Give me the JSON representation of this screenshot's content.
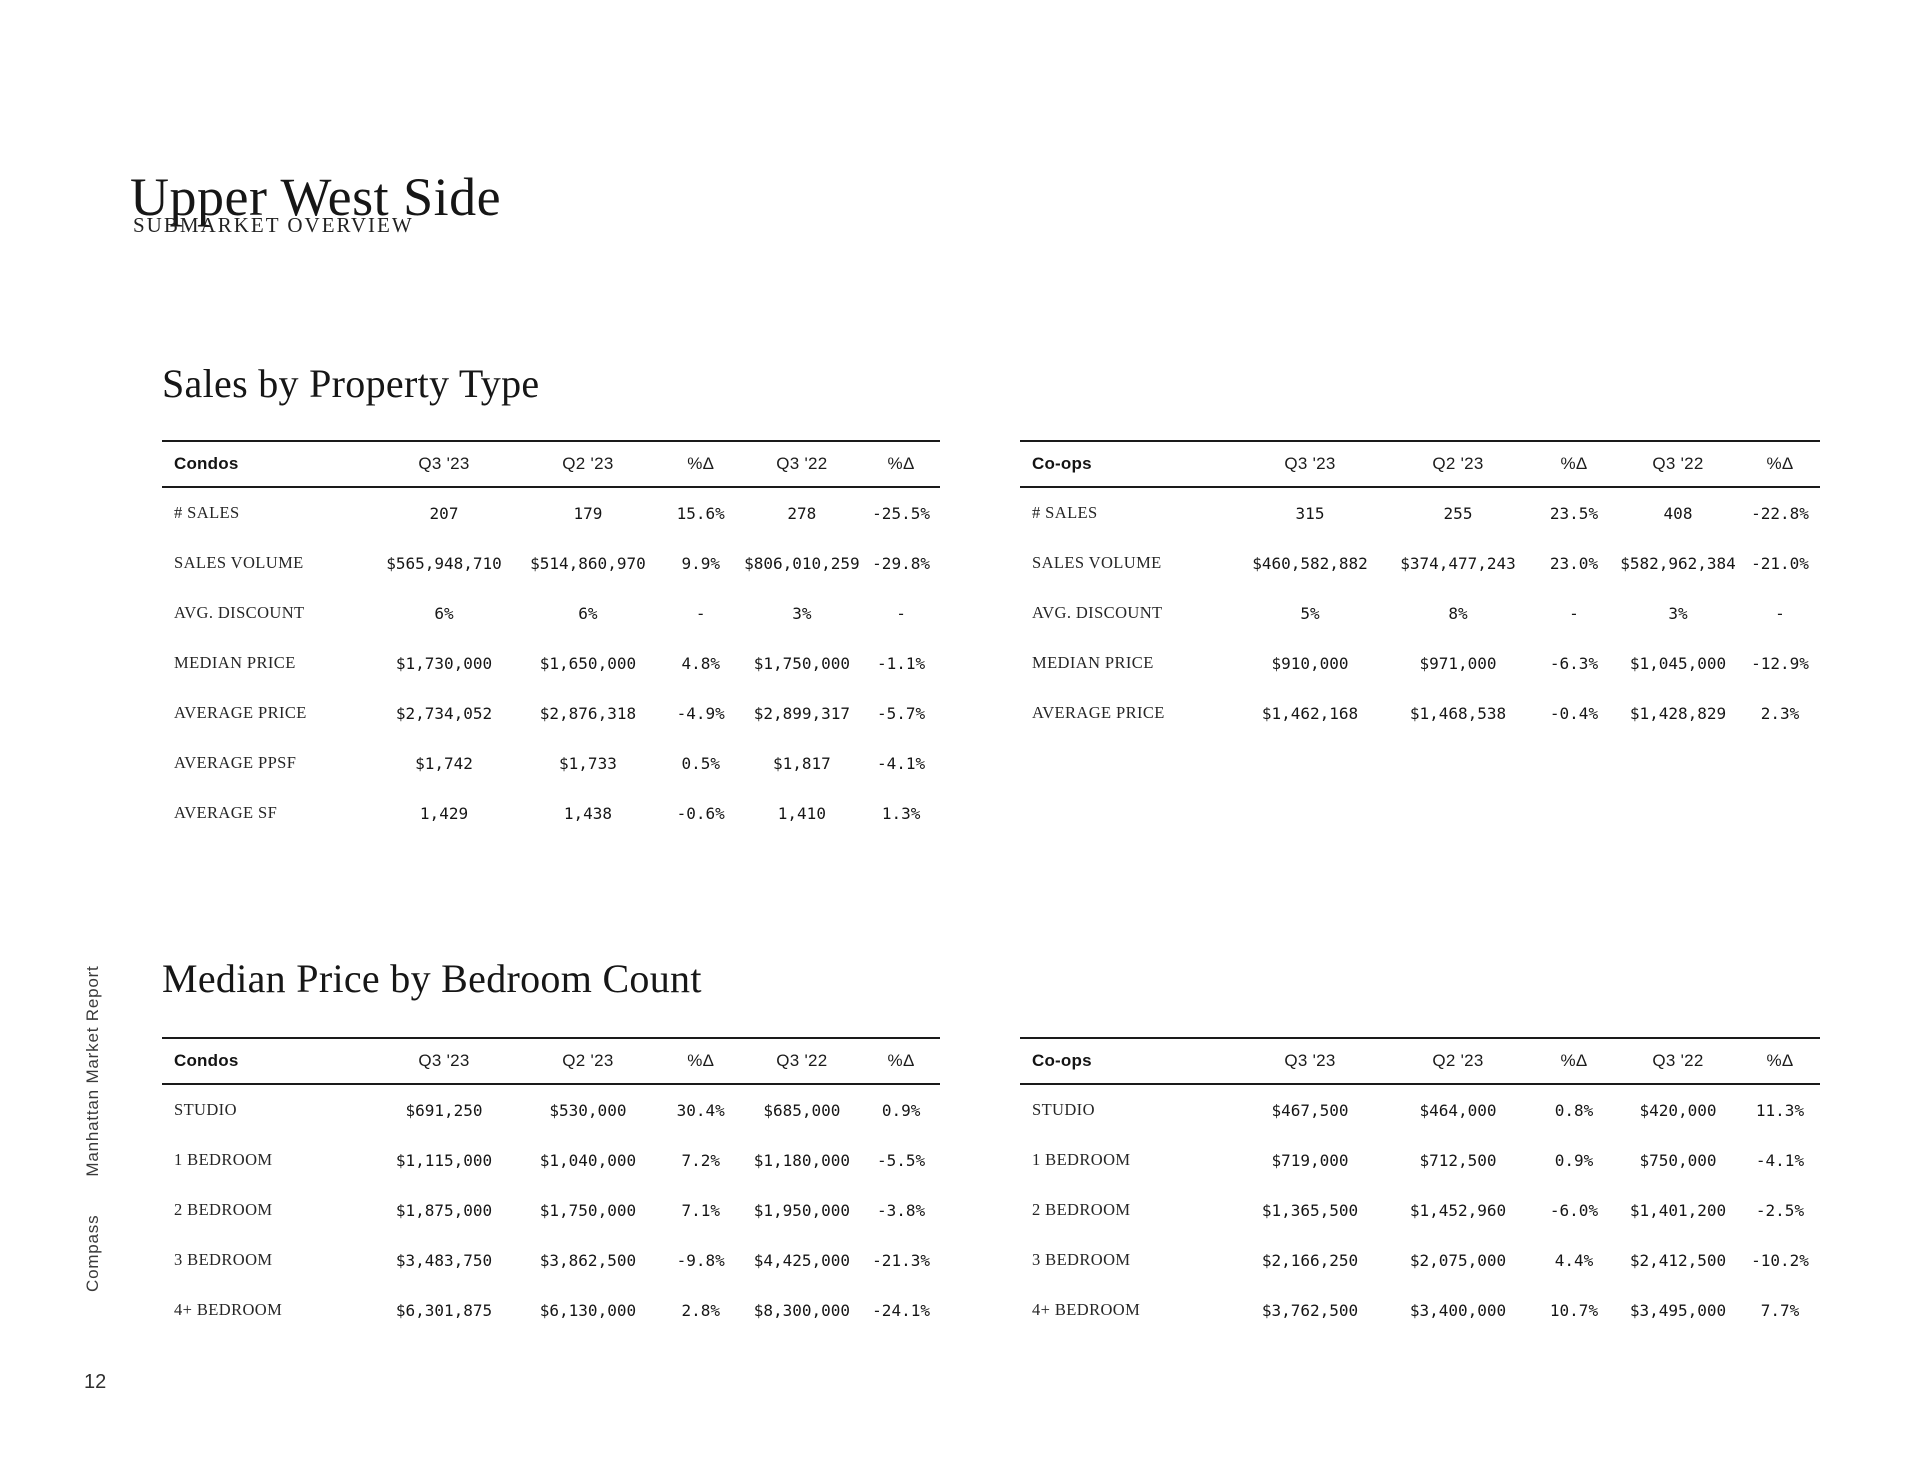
{
  "page": {
    "title": "Upper West Side",
    "subtitle": "SUBMARKET OVERVIEW",
    "page_number": "12",
    "vertical_label": {
      "brand": "Compass",
      "report": "Manhattan Market Report"
    }
  },
  "colors": {
    "text": "#1a1a1a",
    "rule": "#1a1a1a",
    "sidebar_text": "#3a3a3a",
    "background": "#ffffff"
  },
  "sections": [
    {
      "heading": "Sales by Property Type",
      "tables": [
        {
          "name": "Condos",
          "columns": [
            "Q3 '23",
            "Q2 '23",
            "%Δ",
            "Q3 '22",
            "%Δ"
          ],
          "rows": [
            {
              "label": "# SALES",
              "values": [
                "207",
                "179",
                "15.6%",
                "278",
                "-25.5%"
              ]
            },
            {
              "label": "SALES VOLUME",
              "values": [
                "$565,948,710",
                "$514,860,970",
                "9.9%",
                "$806,010,259",
                "-29.8%"
              ]
            },
            {
              "label": "AVG. DISCOUNT",
              "values": [
                "6%",
                "6%",
                "-",
                "3%",
                "-"
              ]
            },
            {
              "label": "MEDIAN PRICE",
              "values": [
                "$1,730,000",
                "$1,650,000",
                "4.8%",
                "$1,750,000",
                "-1.1%"
              ]
            },
            {
              "label": "AVERAGE PRICE",
              "values": [
                "$2,734,052",
                "$2,876,318",
                "-4.9%",
                "$2,899,317",
                "-5.7%"
              ]
            },
            {
              "label": "AVERAGE PPSF",
              "values": [
                "$1,742",
                "$1,733",
                "0.5%",
                "$1,817",
                "-4.1%"
              ]
            },
            {
              "label": "AVERAGE SF",
              "values": [
                "1,429",
                "1,438",
                "-0.6%",
                "1,410",
                "1.3%"
              ]
            }
          ]
        },
        {
          "name": "Co-ops",
          "columns": [
            "Q3 '23",
            "Q2 '23",
            "%Δ",
            "Q3 '22",
            "%Δ"
          ],
          "rows": [
            {
              "label": "# SALES",
              "values": [
                "315",
                "255",
                "23.5%",
                "408",
                "-22.8%"
              ]
            },
            {
              "label": "SALES VOLUME",
              "values": [
                "$460,582,882",
                "$374,477,243",
                "23.0%",
                "$582,962,384",
                "-21.0%"
              ]
            },
            {
              "label": "AVG. DISCOUNT",
              "values": [
                "5%",
                "8%",
                "-",
                "3%",
                "-"
              ]
            },
            {
              "label": "MEDIAN PRICE",
              "values": [
                "$910,000",
                "$971,000",
                "-6.3%",
                "$1,045,000",
                "-12.9%"
              ]
            },
            {
              "label": "AVERAGE PRICE",
              "values": [
                "$1,462,168",
                "$1,468,538",
                "-0.4%",
                "$1,428,829",
                "2.3%"
              ]
            }
          ]
        }
      ]
    },
    {
      "heading": "Median Price by Bedroom Count",
      "tables": [
        {
          "name": "Condos",
          "columns": [
            "Q3 '23",
            "Q2 '23",
            "%Δ",
            "Q3 '22",
            "%Δ"
          ],
          "rows": [
            {
              "label": "STUDIO",
              "values": [
                "$691,250",
                "$530,000",
                "30.4%",
                "$685,000",
                "0.9%"
              ]
            },
            {
              "label": "1 BEDROOM",
              "values": [
                "$1,115,000",
                "$1,040,000",
                "7.2%",
                "$1,180,000",
                "-5.5%"
              ]
            },
            {
              "label": "2 BEDROOM",
              "values": [
                "$1,875,000",
                "$1,750,000",
                "7.1%",
                "$1,950,000",
                "-3.8%"
              ]
            },
            {
              "label": "3 BEDROOM",
              "values": [
                "$3,483,750",
                "$3,862,500",
                "-9.8%",
                "$4,425,000",
                "-21.3%"
              ]
            },
            {
              "label": "4+ BEDROOM",
              "values": [
                "$6,301,875",
                "$6,130,000",
                "2.8%",
                "$8,300,000",
                "-24.1%"
              ]
            }
          ]
        },
        {
          "name": "Co-ops",
          "columns": [
            "Q3 '23",
            "Q2 '23",
            "%Δ",
            "Q3 '22",
            "%Δ"
          ],
          "rows": [
            {
              "label": "STUDIO",
              "values": [
                "$467,500",
                "$464,000",
                "0.8%",
                "$420,000",
                "11.3%"
              ]
            },
            {
              "label": "1 BEDROOM",
              "values": [
                "$719,000",
                "$712,500",
                "0.9%",
                "$750,000",
                "-4.1%"
              ]
            },
            {
              "label": "2 BEDROOM",
              "values": [
                "$1,365,500",
                "$1,452,960",
                "-6.0%",
                "$1,401,200",
                "-2.5%"
              ]
            },
            {
              "label": "3 BEDROOM",
              "values": [
                "$2,166,250",
                "$2,075,000",
                "4.4%",
                "$2,412,500",
                "-10.2%"
              ]
            },
            {
              "label": "4+ BEDROOM",
              "values": [
                "$3,762,500",
                "$3,400,000",
                "10.7%",
                "$3,495,000",
                "7.7%"
              ]
            }
          ]
        }
      ]
    }
  ]
}
